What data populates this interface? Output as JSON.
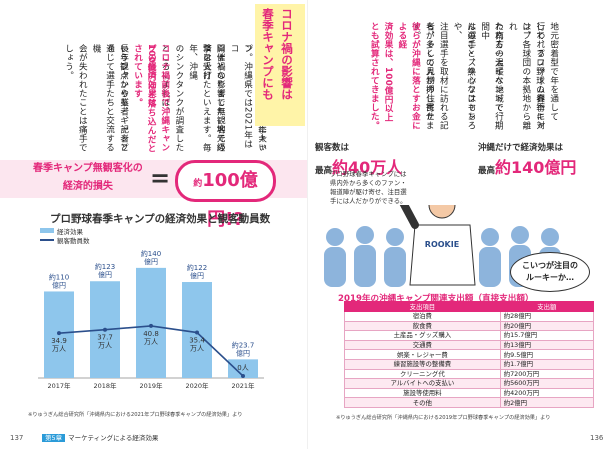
{
  "left_page": {
    "body_columns": [
      {
        "text": "本来ならば地域振興に大い",
        "hl": false
      },
      {
        "text": "に貢献するはずの春季キャン",
        "hl": false
      },
      {
        "text": "プ。沖縄県では2021年はコ",
        "hl": false
      },
      {
        "text": "ロナ禍の影響で無観客での",
        "hl": false
      },
      {
        "text": "開催となりました。地元経済は大打",
        "hl": false
      },
      {
        "text": "撃を受けたといえます。毎年、沖縄",
        "hl": false
      },
      {
        "text": "のシンクタンクが調査した",
        "hl": false
      },
      {
        "text": "ところによれば、",
        "hl": false
      },
      {
        "text": "コロナ禍前後で沖縄キャンプの経済効果は",
        "hl": true
      },
      {
        "text": "100億円ほど落ち込んだとされています。",
        "hl": true
      },
      {
        "text": "長年ファンや業者、記者と",
        "hl": false
      },
      {
        "text": "いう観点からも、キャンプを",
        "hl": false
      },
      {
        "text": "通じて選手たちと交流する機",
        "hl": false
      },
      {
        "text": "会が失われたことは痛手で",
        "hl": false
      },
      {
        "text": "しょう。",
        "hl": false
      }
    ],
    "loss_label_line1": "春季キャンプ無観客化の",
    "loss_label_line2": "経済的損失",
    "equals": "=",
    "loss_prefix": "約",
    "loss_value": "100億円!?",
    "chart_title": "プロ野球春季キャンプの経済効果と観客動員数",
    "legend_bar": "経済効果",
    "legend_line": "観客動員数",
    "source": "※りゅうぎん総合研究所「沖縄県内における2021年プロ野球春季キャンプの経済効果」より",
    "page_number": "137",
    "footer_chapter": "第5章",
    "footer_title": "マーケティングによる経済効果"
  },
  "chart_data": {
    "type": "bar",
    "title": "プロ野球春季キャンプの経済効果と観客動員数",
    "categories": [
      "2017年",
      "2018年",
      "2019年",
      "2020年",
      "2021年"
    ],
    "series": [
      {
        "name": "経済効果",
        "unit": "億円",
        "values": [
          110,
          123,
          140,
          122,
          23.7
        ],
        "labels": [
          "約110\n億円",
          "約123\n億円",
          "約140\n億円",
          "約122\n億円",
          "約23.7\n億円"
        ]
      },
      {
        "name": "観客動員数",
        "unit": "万人",
        "values": [
          34.9,
          37.7,
          40.8,
          35.4,
          0
        ],
        "labels": [
          "34.9\n万人",
          "37.7\n万人",
          "40.8\n万人",
          "35.4\n万人",
          "0人"
        ]
      }
    ],
    "ylim": [
      0,
      150
    ],
    "colors": {
      "bar": "#8ec6ec",
      "line": "#2b4f8c"
    }
  },
  "right_page": {
    "corona_title_line1": "コロナ禍の影響は",
    "corona_title_line2": "春季キャンプにも",
    "body_columns": [
      {
        "text": "地元密着型で年を通して",
        "hl": false
      },
      {
        "text": "行われるファーム興行に対",
        "hl": false
      },
      {
        "text": "して、プロ野球の春季キャンプ",
        "hl": false
      },
      {
        "text": "は、各球団の本拠地から離れ",
        "hl": false
      },
      {
        "text": "た南方の温暖な地域で行",
        "hl": false
      },
      {
        "text": "われる一大イベントで、期間中",
        "hl": false
      },
      {
        "text": "は選手・スタッフはもちろ",
        "hl": false
      },
      {
        "text": "んのこと、熱心なファンや、",
        "hl": false
      },
      {
        "text": "注目選手を取材に訪れる記",
        "hl": false
      },
      {
        "text": "者、そして見物の住民た",
        "hl": false
      },
      {
        "text": "ちが多くの人が押し寄せます。",
        "hl": false
      },
      {
        "text": "彼らが沖縄に落とすお金による経",
        "hl": true
      },
      {
        "text": "済効果は、100億円以上",
        "hl": true
      },
      {
        "text": "とも試算されてきました。",
        "hl": true
      }
    ],
    "stat1_label": "観客数は",
    "stat1_prefix": "最高",
    "stat1_value": "約40万人",
    "stat2_label": "沖縄だけで経済効果は",
    "stat2_prefix": "最高",
    "stat2_value": "約140億円",
    "crowd_note": "プロ野球春季キャンプには県内外から多くのファン・報道陣が駆け寄せ、注目選手には人だかりができる。",
    "jersey": "ROOKIE",
    "speech": "こいつが注目の\nルーキーか…",
    "table_title": "2019年の沖縄キャンプ関連支出額（直接支出額）",
    "table_headers": [
      "支出項目",
      "支出額"
    ],
    "table_rows": [
      [
        "宿泊費",
        "約28億円"
      ],
      [
        "飲食費",
        "約20億円"
      ],
      [
        "土産品・グッズ購入",
        "約15.7億円"
      ],
      [
        "交通費",
        "約13億円"
      ],
      [
        "娯楽・レジャー費",
        "約9.5億円"
      ],
      [
        "練習施設等の整備費",
        "約1.7億円"
      ],
      [
        "クリーニング代",
        "約7200万円"
      ],
      [
        "アルバイトへの支払い",
        "約5600万円"
      ],
      [
        "施設等使用料",
        "約4200万円"
      ],
      [
        "その他",
        "約2億円"
      ]
    ],
    "source": "※りゅうぎん総合研究所「沖縄県内における2019年プロ野球春季キャンプの経済効果」より",
    "page_number": "136"
  }
}
